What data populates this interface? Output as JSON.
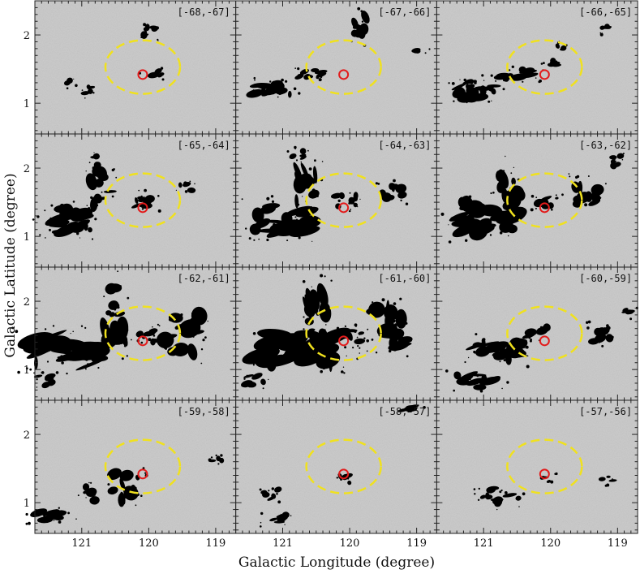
{
  "figure": {
    "x_axis_label": "Galactic Longitude (degree)",
    "y_axis_label": "Galactic Latitude (degree)",
    "x_ticks": [
      "121",
      "120",
      "119"
    ],
    "y_ticks": [
      "2",
      "1"
    ],
    "x_range_deg": [
      121.7,
      118.7
    ],
    "y_range_deg": [
      0.55,
      2.5
    ],
    "grid": {
      "rows": 4,
      "cols": 3
    },
    "colors": {
      "background": "#c8c8c8",
      "emission": "#000000",
      "ellipse": "#f0e11e",
      "marker": "#e21b1b"
    },
    "ellipse": {
      "center_l": 120.09,
      "center_b": 1.53,
      "style": "dashed"
    },
    "marker": {
      "l": 120.09,
      "b": 1.42,
      "shape": "circle"
    },
    "panels": [
      {
        "label": "[-68,-67]"
      },
      {
        "label": "[-67,-66]"
      },
      {
        "label": "[-66,-65]"
      },
      {
        "label": "[-65,-64]"
      },
      {
        "label": "[-64,-63]"
      },
      {
        "label": "[-63,-62]"
      },
      {
        "label": "[-62,-61]"
      },
      {
        "label": "[-61,-60]"
      },
      {
        "label": "[-60,-59]"
      },
      {
        "label": "[-59,-58]"
      },
      {
        "label": "[-58,-57]"
      },
      {
        "label": "[-57,-56]"
      }
    ]
  }
}
